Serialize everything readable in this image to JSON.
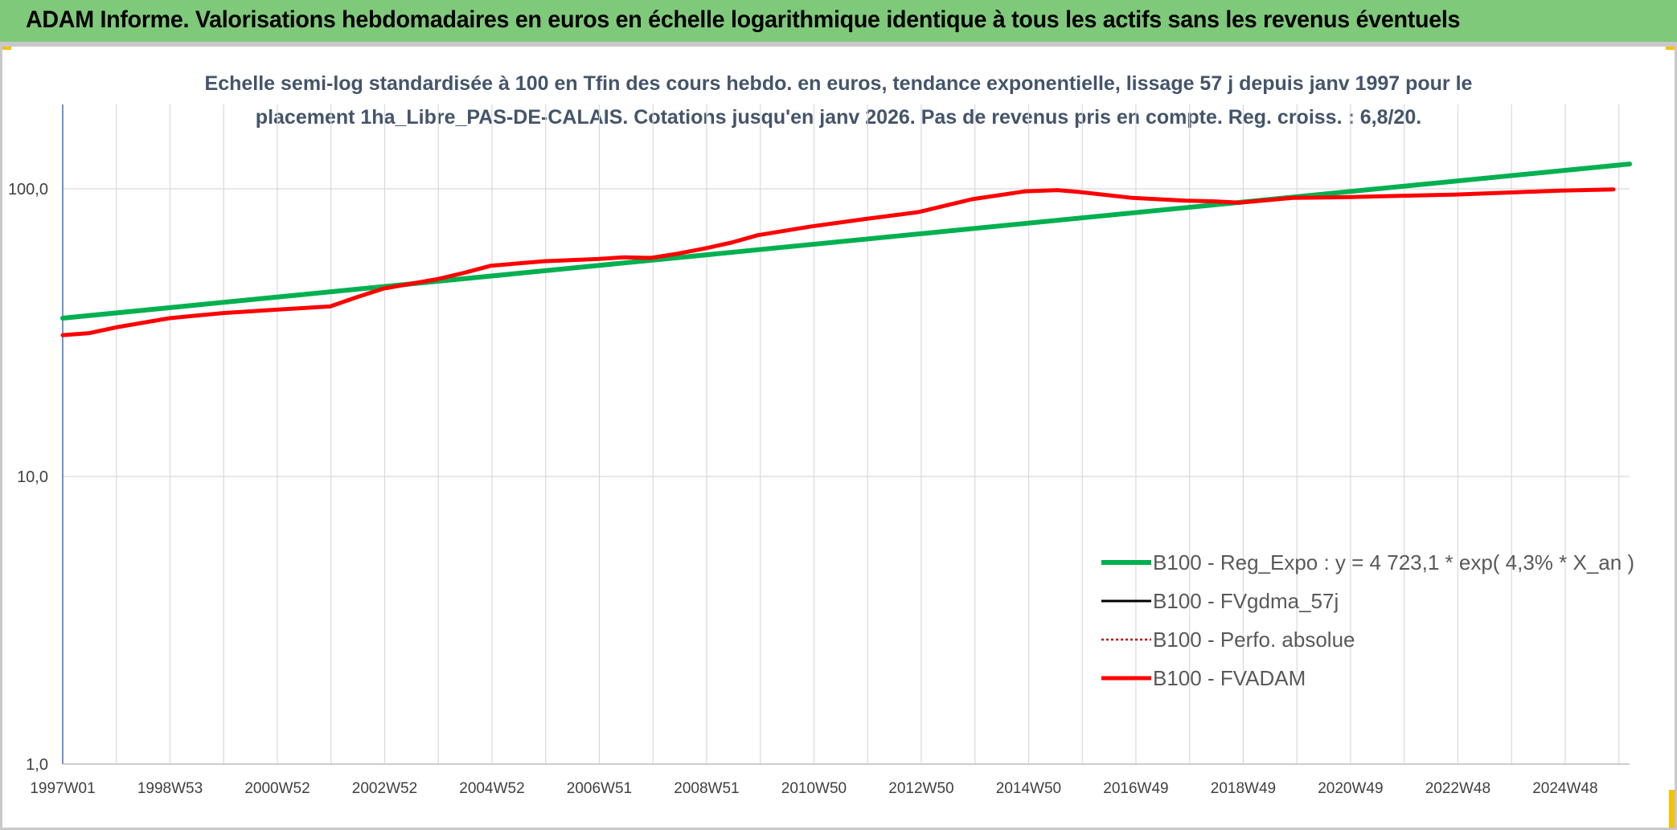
{
  "banner": {
    "title": "ADAM Informe. Valorisations hebdomadaires en euros en échelle logarithmique identique à tous les actifs sans les revenus éventuels"
  },
  "colors": {
    "banner_bg": "#7fc97a",
    "reg_expo": "#00b050",
    "fvgdma": "#000000",
    "perfo": "#c00000",
    "fvadam": "#ff0000",
    "grid": "#d9d9d9"
  },
  "chart_data": {
    "type": "line",
    "subtitle_line1": "Echelle semi-log standardisée à 100 en Tfin des cours hebdo. en euros, tendance exponentielle, lissage 57 j depuis janv 1997 pour le",
    "subtitle_line2": "placement 1ha_Libre_PAS-DE-CALAIS. Cotations jusqu'en janv 2026. Pas de revenus pris en compte. Reg. croiss. : 6,8/20.",
    "y_scale": "log",
    "ylim": [
      1,
      200
    ],
    "y_ticks": [
      "1,0",
      "10,0",
      "100,0"
    ],
    "x_range": [
      1997.0,
      2026.3
    ],
    "x_ticks": [
      "1997W01",
      "1998W53",
      "2000W52",
      "2002W52",
      "2004W52",
      "2006W51",
      "2008W51",
      "2010W50",
      "2012W50",
      "2014W50",
      "2016W49",
      "2018W49",
      "2020W49",
      "2022W48",
      "2024W48"
    ],
    "grid": true,
    "legend_position": "lower-right",
    "series": [
      {
        "name": "B100 - Reg_Expo : y = 4 723,1 * exp( 4,3% *  X_an )",
        "style": "solid-thick",
        "x": [
          1997.0,
          2026.3
        ],
        "y": [
          35.5,
          122.0
        ]
      },
      {
        "name": "B100 - FVgdma_57j",
        "style": "solid-thin",
        "x": [],
        "y": []
      },
      {
        "name": "B100 - Perfo. absolue",
        "style": "dotted",
        "x": [],
        "y": []
      },
      {
        "name": "B100 - FVADAM",
        "style": "solid-thick",
        "x": [
          1997.0,
          1997.5,
          1998.0,
          1999.0,
          2000.0,
          2001.0,
          2002.0,
          2002.5,
          2003.0,
          2004.0,
          2004.5,
          2005.0,
          2006.0,
          2007.0,
          2007.5,
          2008.0,
          2008.5,
          2009.0,
          2009.5,
          2010.0,
          2011.0,
          2012.0,
          2013.0,
          2014.0,
          2015.0,
          2015.6,
          2016.0,
          2017.0,
          2018.0,
          2018.5,
          2019.0,
          2020.0,
          2021.0,
          2022.0,
          2023.0,
          2024.0,
          2025.0,
          2026.0
        ],
        "y": [
          31.0,
          31.5,
          33.0,
          35.5,
          37.0,
          38.0,
          39.0,
          42.0,
          45.0,
          48.5,
          51.0,
          54.0,
          56.0,
          57.0,
          57.8,
          57.5,
          59.5,
          62.0,
          65.0,
          69.0,
          74.0,
          78.5,
          83.0,
          92.0,
          98.0,
          99.0,
          97.5,
          93.0,
          91.0,
          90.5,
          89.5,
          93.0,
          93.5,
          94.5,
          95.5,
          97.0,
          98.5,
          99.5
        ]
      }
    ]
  }
}
